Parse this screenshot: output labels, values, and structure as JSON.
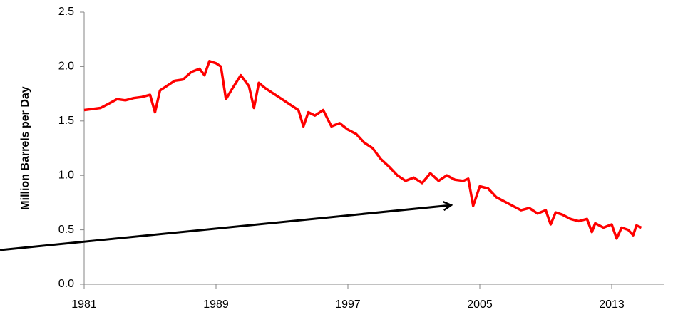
{
  "chart_data": {
    "type": "line",
    "y_label": "Million Barrels per Day",
    "color": "#ff0000",
    "xlim": [
      1981,
      2016.2
    ],
    "xticks": [
      1981,
      1989,
      1997,
      2005,
      2013
    ],
    "ylim": [
      0,
      2.5
    ],
    "yticks": [
      {
        "value": 0,
        "label": "0.0"
      },
      0.5,
      {
        "value": 1,
        "label": "1.0"
      },
      1.5,
      {
        "value": 2,
        "label": "2.0"
      },
      2.5
    ],
    "grid": false,
    "x": [
      1981.0,
      1981.5,
      1982.0,
      1982.5,
      1983.0,
      1983.5,
      1984.0,
      1984.5,
      1985.0,
      1985.3,
      1985.6,
      1986.0,
      1986.5,
      1987.0,
      1987.5,
      1988.0,
      1988.3,
      1988.6,
      1989.0,
      1989.3,
      1989.6,
      1990.0,
      1990.5,
      1991.0,
      1991.3,
      1991.6,
      1992.0,
      1992.5,
      1993.0,
      1993.5,
      1994.0,
      1994.3,
      1994.6,
      1995.0,
      1995.5,
      1996.0,
      1996.5,
      1997.0,
      1997.5,
      1998.0,
      1998.5,
      1999.0,
      1999.5,
      2000.0,
      2000.5,
      2001.0,
      2001.5,
      2002.0,
      2002.5,
      2003.0,
      2003.5,
      2004.0,
      2004.3,
      2004.6,
      2005.0,
      2005.5,
      2006.0,
      2006.5,
      2007.0,
      2007.5,
      2008.0,
      2008.5,
      2009.0,
      2009.3,
      2009.6,
      2010.0,
      2010.5,
      2011.0,
      2011.5,
      2011.8,
      2012.0,
      2012.5,
      2013.0,
      2013.3,
      2013.6,
      2014.0,
      2014.3,
      2014.5,
      2014.8
    ],
    "values": [
      1.6,
      1.61,
      1.62,
      1.66,
      1.7,
      1.69,
      1.71,
      1.72,
      1.74,
      1.58,
      1.78,
      1.82,
      1.87,
      1.88,
      1.95,
      1.98,
      1.92,
      2.05,
      2.03,
      2.0,
      1.7,
      1.8,
      1.92,
      1.82,
      1.62,
      1.85,
      1.8,
      1.75,
      1.7,
      1.65,
      1.6,
      1.45,
      1.58,
      1.55,
      1.6,
      1.45,
      1.48,
      1.42,
      1.38,
      1.3,
      1.25,
      1.15,
      1.08,
      1.0,
      0.95,
      0.98,
      0.93,
      1.02,
      0.95,
      1.0,
      0.96,
      0.95,
      0.97,
      0.72,
      0.9,
      0.88,
      0.8,
      0.76,
      0.72,
      0.68,
      0.7,
      0.65,
      0.68,
      0.55,
      0.66,
      0.64,
      0.6,
      0.58,
      0.6,
      0.48,
      0.56,
      0.52,
      0.55,
      0.42,
      0.52,
      0.5,
      0.45,
      0.54,
      0.52
    ]
  }
}
